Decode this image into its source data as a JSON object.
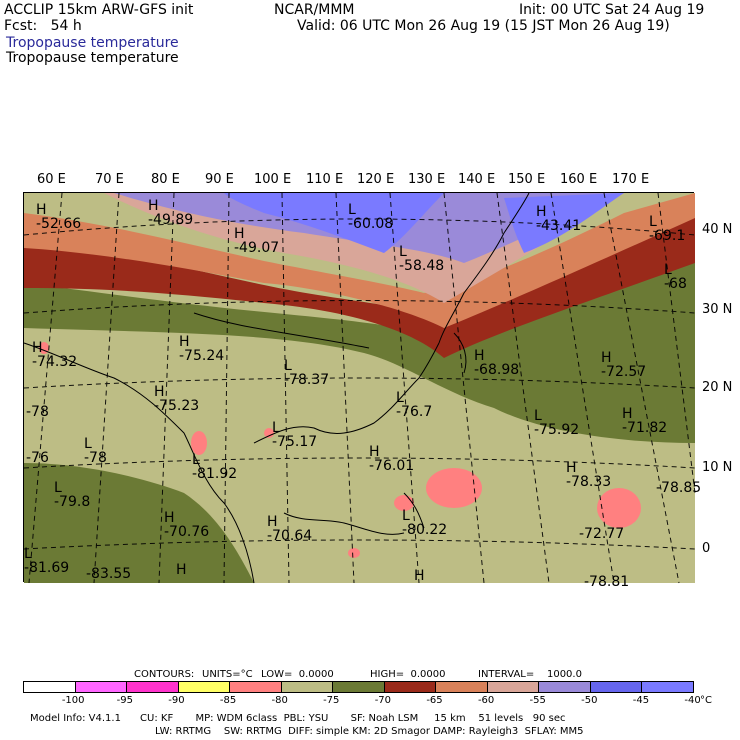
{
  "header": {
    "line1_left": "ACCLIP 15km ARW-GFS init",
    "line2_left": "Fcst:   54 h",
    "center": "NCAR/MMM",
    "init": "Init: 00 UTC Sat 24 Aug 19",
    "valid": "Valid: 06 UTC Mon 26 Aug 19 (15 JST Mon 26 Aug 19)",
    "field1": "Tropopause temperature",
    "field2": "Tropopause temperature"
  },
  "lon_labels": [
    "60 E",
    "70 E",
    "80 E",
    "90 E",
    "100 E",
    "110 E",
    "120 E",
    "130 E",
    "140 E",
    "150 E",
    "160 E",
    "170 E"
  ],
  "lat_labels": [
    "40 N",
    "30 N",
    "20 N",
    "10 N",
    "0"
  ],
  "markers": [
    {
      "sym": "H",
      "val": "-52.66"
    },
    {
      "sym": "H",
      "val": "-49.89"
    },
    {
      "sym": "H",
      "val": "-49.07"
    },
    {
      "sym": "L",
      "val": "-60.08"
    },
    {
      "sym": "L",
      "val": "-58.48"
    },
    {
      "sym": "H",
      "val": "-43.41"
    },
    {
      "sym": "L",
      "val": "-69.1"
    },
    {
      "sym": "L",
      "val": "-68"
    },
    {
      "sym": "H",
      "val": "-74.32"
    },
    {
      "sym": "H",
      "val": "-75.24"
    },
    {
      "sym": "L",
      "val": "-78.37"
    },
    {
      "sym": "H",
      "val": "-68.98"
    },
    {
      "sym": "H",
      "val": "-72.57"
    },
    {
      "sym": "H",
      "val": "-75.23"
    },
    {
      "sym": "",
      "val": "-78"
    },
    {
      "sym": "L",
      "val": "-76.7"
    },
    {
      "sym": "L",
      "val": "-78"
    },
    {
      "sym": "L",
      "val": "-75.17"
    },
    {
      "sym": "L",
      "val": "-75.92"
    },
    {
      "sym": "H",
      "val": "-71.82"
    },
    {
      "sym": "",
      "val": "-76"
    },
    {
      "sym": "L",
      "val": "-81.92"
    },
    {
      "sym": "H",
      "val": "-76.01"
    },
    {
      "sym": "H",
      "val": "-78.33"
    },
    {
      "sym": "L",
      "val": "-79.8"
    },
    {
      "sym": "H",
      "val": "-70.76"
    },
    {
      "sym": "H",
      "val": "-70.64"
    },
    {
      "sym": "L",
      "val": "-80.22"
    },
    {
      "sym": "",
      "val": "-72.77"
    },
    {
      "sym": "L",
      "val": "-81.69"
    },
    {
      "sym": "",
      "val": "-83.55"
    },
    {
      "sym": "H",
      "val": ""
    },
    {
      "sym": "H",
      "val": ""
    },
    {
      "sym": "",
      "val": "-78.81"
    },
    {
      "sym": "",
      "val": "-78.85"
    }
  ],
  "contour_info": {
    "contours": "CONTOURS:",
    "units": "UNITS=°C",
    "low": "LOW=  0.0000",
    "high": "HIGH=  0.0000",
    "interval": "INTERVAL=    1000.0"
  },
  "colorbar": {
    "colors": [
      "#ffffff",
      "#ff66ff",
      "#ff33cc",
      "#ffff66",
      "#ff8080",
      "#bdbd85",
      "#6b7a35",
      "#9a2a1a",
      "#d9825a",
      "#d9a699",
      "#9a8ad9",
      "#6666ee",
      "#7a7aff"
    ],
    "ticks": [
      "-100",
      "-95",
      "-90",
      "-85",
      "-80",
      "-75",
      "-70",
      "-65",
      "-60",
      "-55",
      "-50",
      "-45",
      "-40",
      "°C"
    ]
  },
  "footer": {
    "line1": "Model Info: V4.1.1      CU: KF       MP: WDM 6class  PBL: YSU       SF: Noah LSM     15 km    51 levels   90 sec",
    "line2": "LW: RRTMG    SW: RRTMG  DIFF: simple KM: 2D Smagor DAMP: Rayleigh3  SFLAY: MM5"
  }
}
